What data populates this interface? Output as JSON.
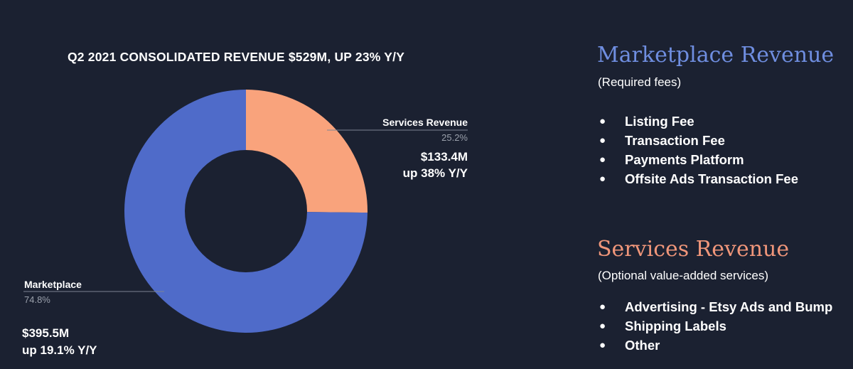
{
  "chart_data": {
    "type": "pie",
    "title": "Q2 2021 CONSOLIDATED REVENUE $529M, UP 23% Y/Y",
    "donut": true,
    "slices": [
      {
        "name": "Services Revenue",
        "percent": 25.2,
        "percent_label": "25.2%",
        "amount": "$133.4M",
        "growth": "up 38% Y/Y",
        "color": "#f9a37c"
      },
      {
        "name": "Marketplace",
        "percent": 74.8,
        "percent_label": "74.8%",
        "amount": "$395.5M",
        "growth": "up 19.1% Y/Y",
        "color": "#4f6bc9"
      }
    ]
  },
  "marketplace_panel": {
    "heading": "Marketplace Revenue",
    "subheading": "(Required fees)",
    "heading_color": "#6f8ee0",
    "items": [
      "Listing Fee",
      "Transaction Fee",
      "Payments Platform",
      "Offsite Ads Transaction Fee"
    ]
  },
  "services_panel": {
    "heading": "Services Revenue",
    "subheading": "(Optional value-added services)",
    "heading_color": "#f0967a",
    "items": [
      "Advertising - Etsy Ads and Bump",
      "Shipping Labels",
      "Other"
    ]
  },
  "bullet_glyph": "●"
}
